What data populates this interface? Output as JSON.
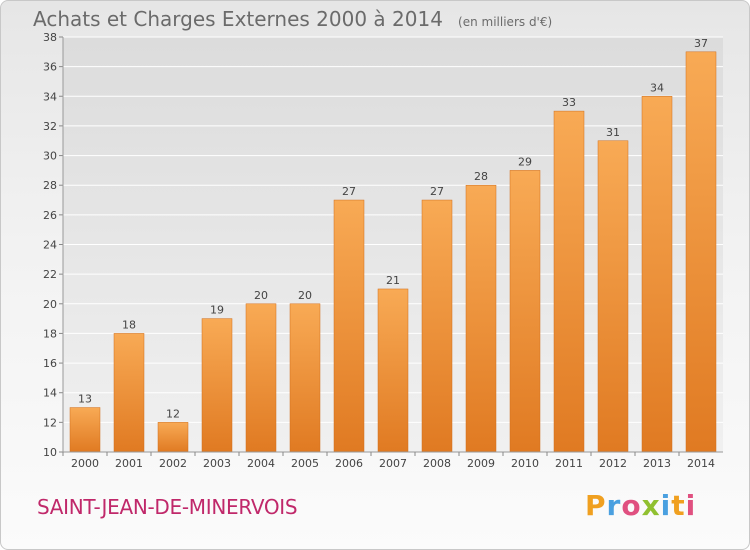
{
  "header": {
    "title": "Achats et Charges Externes 2000 à 2014",
    "unit": "(en milliers d'€)"
  },
  "footer": {
    "place": "SAINT-JEAN-DE-MINERVOIS",
    "logo": "Proxiti"
  },
  "colors": {
    "bar_light": "#f8aa55",
    "bar_dark": "#e07a22",
    "bar_edge": "#d06e1c",
    "grid": "#ffffff",
    "text": "#444444",
    "place": "#c0286a",
    "logo_letters": [
      "#f0a020",
      "#4aa0e0",
      "#e05080",
      "#90c030",
      "#4aa0e0",
      "#f0a020",
      "#e05080"
    ]
  },
  "chart_data": {
    "type": "bar",
    "title": "Achats et Charges Externes 2000 à 2014",
    "categories": [
      "2000",
      "2001",
      "2002",
      "2003",
      "2004",
      "2005",
      "2006",
      "2007",
      "2008",
      "2009",
      "2010",
      "2011",
      "2012",
      "2013",
      "2014"
    ],
    "values": [
      13,
      18,
      12,
      19,
      20,
      20,
      27,
      21,
      27,
      28,
      29,
      33,
      31,
      34,
      37
    ],
    "xlabel": "",
    "ylabel": "",
    "ylim": [
      10,
      38
    ],
    "yticks": [
      10,
      12,
      14,
      16,
      18,
      20,
      22,
      24,
      26,
      28,
      30,
      32,
      34,
      36,
      38
    ],
    "grid": true,
    "data_labels": true
  }
}
